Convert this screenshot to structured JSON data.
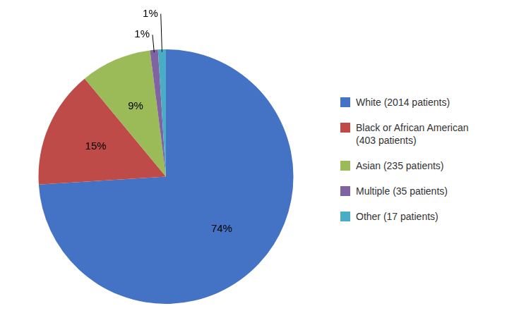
{
  "chart_data": {
    "type": "pie",
    "categories": [
      "White (2014 patients)",
      "Black or African American\n(403 patients)",
      "Asian (235 patients)",
      "Multiple (35 patients)",
      "Other (17 patients)"
    ],
    "values": [
      74,
      15,
      9,
      1,
      1
    ],
    "value_labels": [
      "74%",
      "15%",
      "9%",
      "1%",
      "1%"
    ],
    "colors": [
      "#4472C4",
      "#BE4B48",
      "#9BBB59",
      "#8064A2",
      "#4BACC6"
    ],
    "data_labels": true,
    "legend": "right"
  }
}
